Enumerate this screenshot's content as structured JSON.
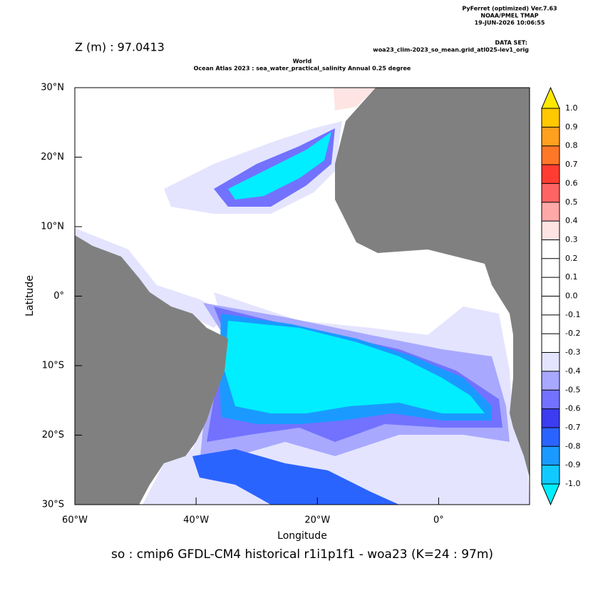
{
  "header": {
    "program": "PyFerret (optimized) Ver.7.63",
    "organization": "NOAA/PMEL TMAP",
    "timestamp": "19-JUN-2026 10:06:55",
    "dataset_label": "DATA SET:",
    "dataset": "woa23_clim-2023_so_mean.grid_atl025-lev1_orig"
  },
  "depth_label": "Z (m) : 97.0413",
  "title_lines": [
    "World",
    "Ocean Atlas 2023 : sea_water_practical_salinity Annual  0.25 degree"
  ],
  "map": {
    "xlabel": "Longitude",
    "ylabel": "Latitude",
    "xlim": [
      -60,
      15
    ],
    "ylim": [
      -30,
      30
    ],
    "xticks": [
      {
        "value": -60,
        "label": "60°W"
      },
      {
        "value": -40,
        "label": "40°W"
      },
      {
        "value": -20,
        "label": "20°W"
      },
      {
        "value": 0,
        "label": "0°"
      }
    ],
    "yticks": [
      {
        "value": 30,
        "label": "30°N"
      },
      {
        "value": 20,
        "label": "20°N"
      },
      {
        "value": 10,
        "label": "10°N"
      },
      {
        "value": 0,
        "label": "0°"
      },
      {
        "value": -10,
        "label": "10°S"
      },
      {
        "value": -20,
        "label": "20°S"
      },
      {
        "value": -30,
        "label": "30°S"
      }
    ],
    "land_color": "#808080"
  },
  "colorbar": {
    "levels": [
      {
        "value": 1,
        "label": "1.0"
      },
      0.9,
      0.8,
      0.7,
      0.6,
      0.5,
      0.4,
      0.3,
      0.2,
      0.1,
      {
        "value": 0,
        "label": "0.0"
      },
      -0.1,
      -0.2,
      -0.3,
      -0.4,
      -0.5,
      -0.6,
      -0.7,
      -0.8,
      -0.9,
      {
        "value": -1,
        "label": "-1.0"
      }
    ],
    "colors": [
      "#ffe800",
      "#ffc800",
      "#ffa020",
      "#ff7828",
      "#ff3c32",
      "#ff6464",
      "#ffa8a8",
      "#ffe4e4",
      "#ffffff",
      "#ffffff",
      "#ffffff",
      "#ffffff",
      "#ffffff",
      "#ffffff",
      "#e4e4ff",
      "#a8a8ff",
      "#7272ff",
      "#3c3cf0",
      "#2a64ff",
      "#1a9aff",
      "#10caff",
      "#00eeff"
    ]
  },
  "caption": "so : cmip6 GFDL-CM4 historical r1i1p1f1 - woa23  (K=24 : 97m)"
}
